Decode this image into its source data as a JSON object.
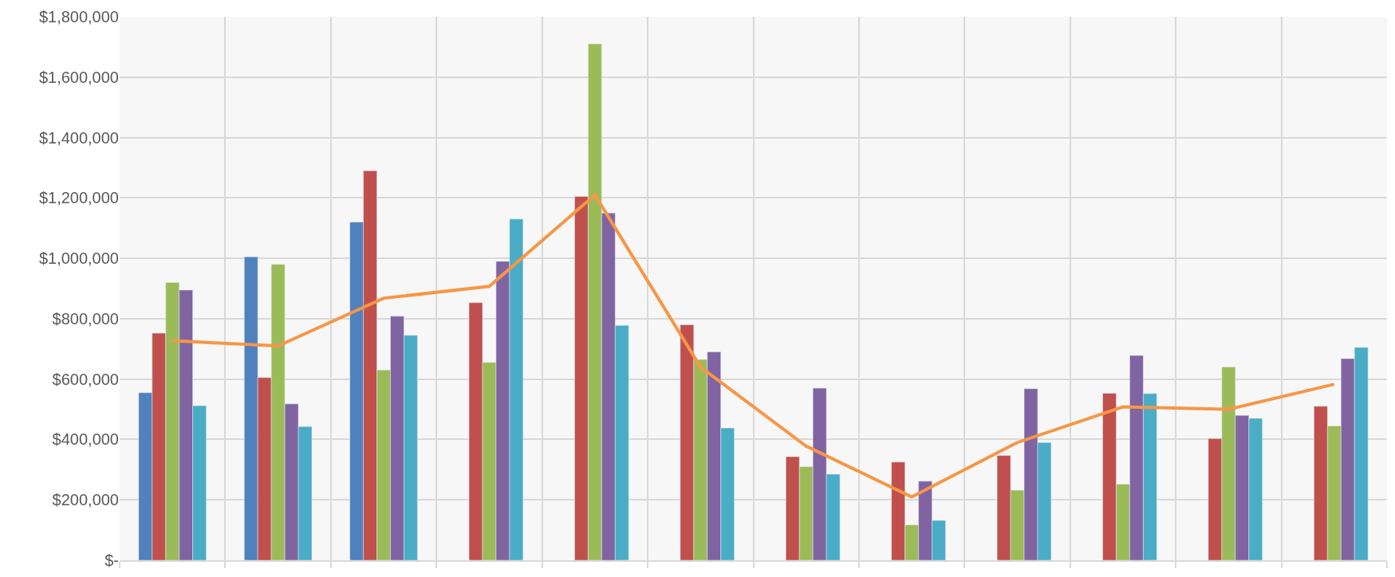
{
  "chart_data": {
    "type": "bar",
    "categories": [
      null,
      null,
      null,
      null,
      null,
      null,
      null,
      null,
      null,
      null,
      null,
      null
    ],
    "series": [
      {
        "color": "#4f81bd",
        "values": [
          555000,
          1005000,
          1120000,
          null,
          null,
          null,
          null,
          null,
          null,
          null,
          null,
          null
        ]
      },
      {
        "color": "#c0504d",
        "values": [
          752000,
          605000,
          1290000,
          853000,
          1205000,
          780000,
          343000,
          325000,
          347000,
          553000,
          403000,
          510000
        ]
      },
      {
        "color": "#9bbb59",
        "values": [
          920000,
          980000,
          630000,
          655000,
          1710000,
          665000,
          310000,
          117000,
          232000,
          252000,
          640000,
          445000
        ]
      },
      {
        "color": "#8064a2",
        "values": [
          895000,
          518000,
          808000,
          990000,
          1150000,
          690000,
          570000,
          262000,
          568000,
          678000,
          480000,
          668000
        ]
      },
      {
        "color": "#4bacc6",
        "values": [
          512000,
          443000,
          745000,
          1130000,
          778000,
          438000,
          285000,
          132000,
          390000,
          552000,
          470000,
          705000
        ]
      },
      {
        "type": "line",
        "color": "#f79646",
        "values": [
          727000,
          710000,
          868000,
          907000,
          1210000,
          640000,
          378000,
          210000,
          390000,
          508000,
          500000,
          583000
        ]
      }
    ],
    "ylim": [
      0,
      1800000
    ],
    "yticks": [
      {
        "value": 0,
        "label": "$-"
      },
      {
        "value": 200000,
        "label": "$200,000"
      },
      {
        "value": 400000,
        "label": "$400,000"
      },
      {
        "value": 600000,
        "label": "$600,000"
      },
      {
        "value": 800000,
        "label": "$800,000"
      },
      {
        "value": 1000000,
        "label": "$1,000,000"
      },
      {
        "value": 1200000,
        "label": "$1,200,000"
      },
      {
        "value": 1400000,
        "label": "$1,400,000"
      },
      {
        "value": 1600000,
        "label": "$1,600,000"
      },
      {
        "value": 1800000,
        "label": "$1,800,000"
      }
    ],
    "grid": true,
    "marker": "none",
    "tick_labels": "y"
  }
}
